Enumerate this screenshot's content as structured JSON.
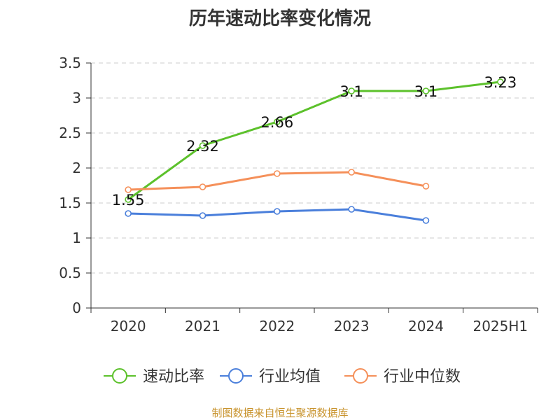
{
  "chart_data": {
    "type": "line",
    "title": "历年速动比率变化情况",
    "categories": [
      "2020",
      "2021",
      "2022",
      "2023",
      "2024",
      "2025H1"
    ],
    "ylim": [
      0,
      3.5
    ],
    "yticks": [
      "0",
      "0.5",
      "1",
      "1.5",
      "2",
      "2.5",
      "3",
      "3.5"
    ],
    "grid": true,
    "legend_position": "bottom",
    "series": [
      {
        "name": "速动比率",
        "color": "#5cc12b",
        "values": [
          1.55,
          2.32,
          2.66,
          3.1,
          3.1,
          3.23
        ],
        "labels": [
          "1.55",
          "2.32",
          "2.66",
          "3.1",
          "3.1",
          "3.23"
        ]
      },
      {
        "name": "行业均值",
        "color": "#4a7fdb",
        "values": [
          1.35,
          1.32,
          1.38,
          1.41,
          1.25,
          null
        ]
      },
      {
        "name": "行业中位数",
        "color": "#f5905a",
        "values": [
          1.69,
          1.73,
          1.92,
          1.94,
          1.74,
          null
        ]
      }
    ]
  },
  "source_note": "制图数据来自恒生聚源数据库"
}
